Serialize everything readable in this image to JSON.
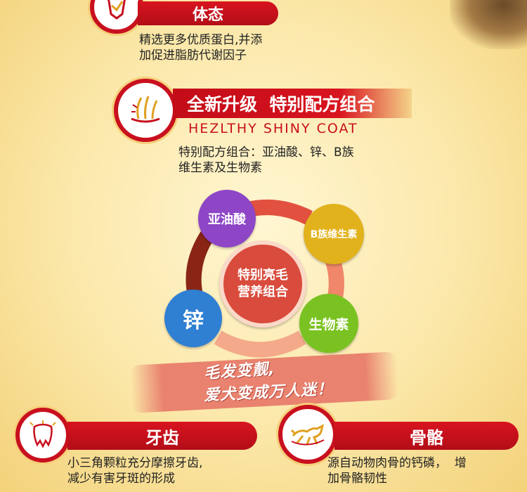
{
  "section_body": {
    "title": "体态",
    "desc_line1": "精选更多优质蛋白,并添",
    "desc_line2": "加促进脂肪代谢因子"
  },
  "section_coat": {
    "title": "全新升级  特别配方组合",
    "subtitle": "HEZLTHY SHINY COAT",
    "desc_line1": "特别配方组合：亚油酸、锌、B族",
    "desc_line2": "维生素及生物素"
  },
  "cycle": {
    "center_line1": "特别亮毛",
    "center_line2": "营养组合",
    "node_linoleic": "亚油酸",
    "node_vitb": "B族维生素",
    "node_zinc": "锌",
    "node_biotin": "生物素",
    "colors": {
      "linoleic": "#8e46c6",
      "vitb": "#e2b21d",
      "zinc": "#2f7fd3",
      "biotin": "#7ac221",
      "center": "#d94b3c"
    }
  },
  "slogan": {
    "line1": "毛发变靓,",
    "line2": "爱犬变成万人迷！"
  },
  "section_teeth": {
    "title": "牙齿",
    "desc_line1": "小三角颗粒充分摩擦牙齿,",
    "desc_line2": "减少有害牙斑的形成"
  },
  "section_bone": {
    "title": "骨骼",
    "desc_line1": "源自动物肉骨的钙磷，  增",
    "desc_line2": "加骨骼韧性"
  }
}
